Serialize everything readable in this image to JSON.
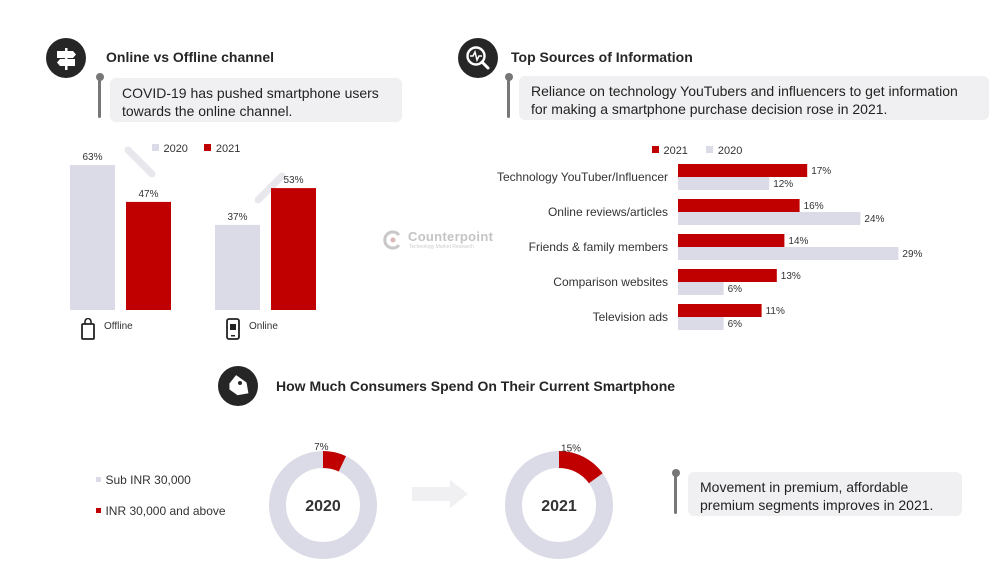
{
  "colors": {
    "y2020": "#dadbe6",
    "y2021": "#c00000",
    "dark": "#262626",
    "gray_text": "#333333"
  },
  "section1": {
    "icon": "signpost-icon",
    "title": "Online vs Offline channel",
    "callout": [
      "COVID-19 has pushed smartphone users",
      "towards the online channel."
    ],
    "chart_data": {
      "type": "bar",
      "categories": [
        "Offline",
        "Online"
      ],
      "series": [
        {
          "name": "2020",
          "values": [
            63,
            37
          ]
        },
        {
          "name": "2021",
          "values": [
            47,
            53
          ]
        }
      ],
      "value_labels": {
        "2020": [
          "63%",
          "37%"
        ],
        "2021": [
          "47%",
          "53%"
        ]
      },
      "category_icons": [
        "shopping-bag-icon",
        "mobile-phone-icon"
      ],
      "legend": [
        "2020",
        "2021"
      ]
    }
  },
  "section2": {
    "icon": "search-analytics-icon",
    "title": "Top Sources of Information",
    "callout": [
      "Reliance on technology YouTubers and influencers to get information",
      "for making a smartphone purchase decision rose in 2021."
    ],
    "chart_data": {
      "type": "bar",
      "orientation": "horizontal",
      "categories": [
        "Technology YouTuber/Influencer",
        "Online reviews/articles",
        "Friends & family members",
        "Comparison websites",
        "Television ads"
      ],
      "series": [
        {
          "name": "2021",
          "values": [
            17,
            16,
            14,
            13,
            11
          ]
        },
        {
          "name": "2020",
          "values": [
            12,
            24,
            29,
            6,
            6
          ]
        }
      ],
      "value_labels": {
        "2021": [
          "17%",
          "16%",
          "14%",
          "13%",
          "11%"
        ],
        "2020": [
          "12%",
          "24%",
          "29%",
          "6%",
          "6%"
        ]
      },
      "legend": [
        "2021",
        "2020"
      ]
    }
  },
  "watermark": {
    "name": "Counterpoint",
    "tagline": "Technology Market Research"
  },
  "section3": {
    "icon": "price-tag-icon",
    "title": "How Much Consumers Spend On Their Current Smartphone",
    "legend": [
      "Sub INR 30,000",
      "INR 30,000 and above"
    ],
    "callout": [
      "Movement in premium, affordable",
      "premium segments improves in 2021."
    ],
    "chart_data": [
      {
        "type": "pie",
        "title": "2020",
        "labels": [
          "Sub INR 30,000",
          "INR 30,000 and above"
        ],
        "values": [
          93,
          7
        ],
        "shown_label": "7%"
      },
      {
        "type": "pie",
        "title": "2021",
        "labels": [
          "Sub INR 30,000",
          "INR 30,000 and above"
        ],
        "values": [
          85,
          15
        ],
        "shown_label": "15%"
      }
    ]
  }
}
